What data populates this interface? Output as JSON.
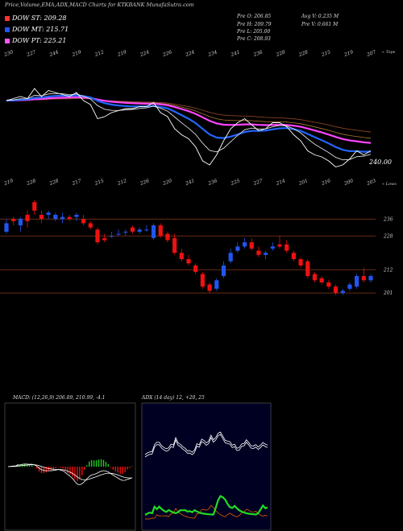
{
  "header": {
    "title": "Price,Volume,EMA,ADX,MACD Charts for KTKBANK MunafaSutra.com"
  },
  "legend": [
    {
      "label": "DOW ST: 209.28",
      "color": "#ff3333"
    },
    {
      "label": "DOW MT: 215.71",
      "color": "#2255ff"
    },
    {
      "label": "DOW PT: 225.21",
      "color": "#ff55ff"
    }
  ],
  "ohlc": {
    "open": "Pre O: 206.85",
    "high": "Pre H: 209.79",
    "low": "Pre L: 205.00",
    "close": "Pre C: 208.93",
    "avg_vol": "Avg V: 0.235 M",
    "vol": "Pre V: 0.661 M"
  },
  "price_label": "240.00",
  "top_axis": {
    "caption": "« Tops",
    "labels": [
      "230",
      "227",
      "244",
      "219",
      "212",
      "219",
      "224",
      "226",
      "224",
      "234",
      "241",
      "236",
      "228",
      "228",
      "215",
      "219",
      "207"
    ]
  },
  "bottom_axis": {
    "caption": "« Lows",
    "labels": [
      "219",
      "228",
      "228",
      "217",
      "215",
      "212",
      "226",
      "220",
      "241",
      "236",
      "225",
      "227",
      "214",
      "201",
      "216",
      "200",
      "203"
    ]
  },
  "levels": [
    "236",
    "228",
    "212",
    "201"
  ],
  "macd_label": "MACD: (12,26,9) 206.89, 210.99, -4.1",
  "adx_label": "ADX (14 day) 12, +20, 25",
  "colors": {
    "ema_fast": "#2266ff",
    "ema_slow": "#ff44ff",
    "bull": "#2255ee",
    "bear": "#ee1111",
    "macd_hist_pos": "#22cc22",
    "macd_hist_neg": "#ee1111",
    "adx_plus": "#22dd22",
    "adx_minus": "#cc5500"
  },
  "chart_data": {
    "type": "candlestick",
    "level_lines": [
      236,
      228,
      212,
      201
    ],
    "candles": [
      {
        "o": 230,
        "h": 236,
        "l": 229,
        "c": 234
      },
      {
        "o": 236,
        "h": 237,
        "l": 233,
        "c": 235
      },
      {
        "o": 233,
        "h": 237,
        "l": 230,
        "c": 236
      },
      {
        "o": 238,
        "h": 240,
        "l": 232,
        "c": 235
      },
      {
        "o": 244,
        "h": 245,
        "l": 238,
        "c": 240
      },
      {
        "o": 238,
        "h": 240,
        "l": 234,
        "c": 236
      },
      {
        "o": 238,
        "h": 240,
        "l": 236,
        "c": 239
      },
      {
        "o": 236,
        "h": 239,
        "l": 235,
        "c": 238
      },
      {
        "o": 236,
        "h": 239,
        "l": 234,
        "c": 237
      },
      {
        "o": 237,
        "h": 238,
        "l": 235,
        "c": 236
      },
      {
        "o": 237,
        "h": 239,
        "l": 235,
        "c": 238
      },
      {
        "o": 236,
        "h": 238,
        "l": 233,
        "c": 234
      },
      {
        "o": 234,
        "h": 235,
        "l": 231,
        "c": 232
      },
      {
        "o": 231,
        "h": 232,
        "l": 224,
        "c": 225
      },
      {
        "o": 227,
        "h": 229,
        "l": 225,
        "c": 226
      },
      {
        "o": 228,
        "h": 230,
        "l": 227,
        "c": 228
      },
      {
        "o": 229,
        "h": 231,
        "l": 228,
        "c": 229
      },
      {
        "o": 230,
        "h": 231,
        "l": 228,
        "c": 230
      },
      {
        "o": 232,
        "h": 233,
        "l": 229,
        "c": 230
      },
      {
        "o": 230,
        "h": 232,
        "l": 229,
        "c": 231
      },
      {
        "o": 231,
        "h": 233,
        "l": 230,
        "c": 231
      },
      {
        "o": 227,
        "h": 234,
        "l": 226,
        "c": 233
      },
      {
        "o": 233,
        "h": 234,
        "l": 227,
        "c": 228
      },
      {
        "o": 229,
        "h": 230,
        "l": 225,
        "c": 226
      },
      {
        "o": 227,
        "h": 229,
        "l": 219,
        "c": 220
      },
      {
        "o": 220,
        "h": 222,
        "l": 216,
        "c": 217
      },
      {
        "o": 217,
        "h": 219,
        "l": 214,
        "c": 215
      },
      {
        "o": 214,
        "h": 215,
        "l": 210,
        "c": 211
      },
      {
        "o": 210,
        "h": 211,
        "l": 203,
        "c": 204
      },
      {
        "o": 205,
        "h": 206,
        "l": 201,
        "c": 202
      },
      {
        "o": 203,
        "h": 208,
        "l": 202,
        "c": 207
      },
      {
        "o": 209,
        "h": 216,
        "l": 208,
        "c": 214
      },
      {
        "o": 216,
        "h": 222,
        "l": 215,
        "c": 220
      },
      {
        "o": 221,
        "h": 225,
        "l": 220,
        "c": 223
      },
      {
        "o": 223,
        "h": 227,
        "l": 222,
        "c": 225
      },
      {
        "o": 225,
        "h": 227,
        "l": 221,
        "c": 222
      },
      {
        "o": 221,
        "h": 223,
        "l": 218,
        "c": 219
      },
      {
        "o": 219,
        "h": 221,
        "l": 217,
        "c": 220
      },
      {
        "o": 222,
        "h": 225,
        "l": 221,
        "c": 223
      },
      {
        "o": 224,
        "h": 228,
        "l": 222,
        "c": 223
      },
      {
        "o": 224,
        "h": 226,
        "l": 220,
        "c": 221
      },
      {
        "o": 220,
        "h": 221,
        "l": 216,
        "c": 217
      },
      {
        "o": 217,
        "h": 218,
        "l": 213,
        "c": 214
      },
      {
        "o": 216,
        "h": 217,
        "l": 208,
        "c": 209
      },
      {
        "o": 210,
        "h": 211,
        "l": 206,
        "c": 207
      },
      {
        "o": 208,
        "h": 209,
        "l": 205,
        "c": 206
      },
      {
        "o": 206,
        "h": 207,
        "l": 203,
        "c": 204
      },
      {
        "o": 204,
        "h": 205,
        "l": 200,
        "c": 201
      },
      {
        "o": 201,
        "h": 203,
        "l": 200,
        "c": 202
      },
      {
        "o": 203,
        "h": 206,
        "l": 202,
        "c": 205
      },
      {
        "o": 204,
        "h": 210,
        "l": 203,
        "c": 209
      },
      {
        "o": 209,
        "h": 213,
        "l": 206,
        "c": 207
      },
      {
        "o": 207,
        "h": 210,
        "l": 206,
        "c": 209
      }
    ]
  }
}
